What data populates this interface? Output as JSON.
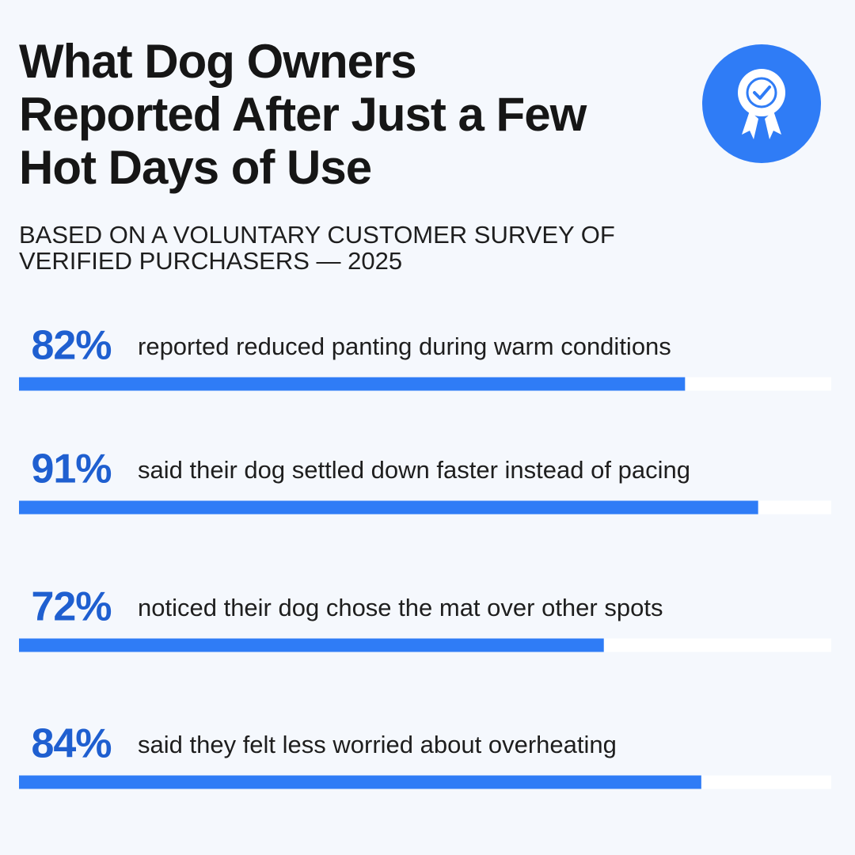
{
  "chart_data": {
    "type": "bar",
    "title": "What Dog Owners Reported After Just a Few Hot Days of Use",
    "subtitle": "BASED ON A VOLUNTARY CUSTOMER SURVEY OF VERIFIED PURCHASERS — 2025",
    "categories": [
      "reported reduced panting during warm conditions",
      "said their dog settled down faster instead of pacing",
      "noticed their dog chose the mat over other spots",
      "said they felt less worried about overheating"
    ],
    "values": [
      82,
      91,
      72,
      84
    ],
    "value_labels": [
      "82%",
      "91%",
      "72%",
      "84%"
    ],
    "color": "#2f7cf6",
    "xlim": [
      0,
      100
    ]
  }
}
